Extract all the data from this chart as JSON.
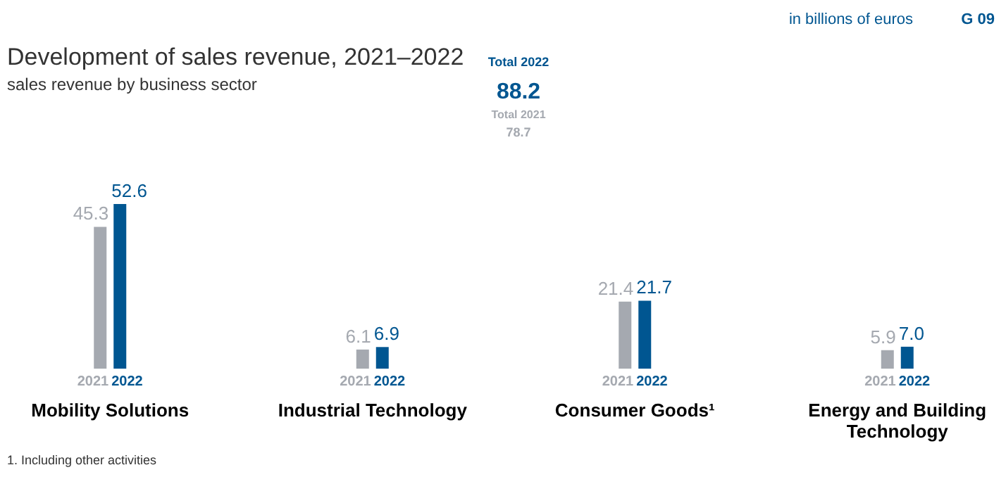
{
  "chart_data": {
    "type": "bar",
    "title": "Development of sales revenue, 2021–2022",
    "subtitle": "sales revenue by business sector",
    "categories": [
      "Mobility Solutions",
      "Industrial Technology",
      "Consumer Goods¹",
      "Energy and Building Technology"
    ],
    "series": [
      {
        "name": "2021",
        "color": "#a5a9b0",
        "values": [
          45.3,
          6.1,
          21.4,
          5.9
        ],
        "value_labels": [
          "45.3",
          "6.1",
          "21.4",
          "5.9"
        ]
      },
      {
        "name": "2022",
        "color": "#005691",
        "values": [
          52.6,
          6.9,
          21.7,
          7.0
        ],
        "value_labels": [
          "52.6",
          "6.9",
          "21.7",
          "7.0"
        ]
      }
    ],
    "annotations": [
      "in billions of euros",
      "G 09",
      "Total 2022",
      "88.2",
      "Total 2021",
      "78.7",
      "1. Including other activities"
    ]
  }
}
